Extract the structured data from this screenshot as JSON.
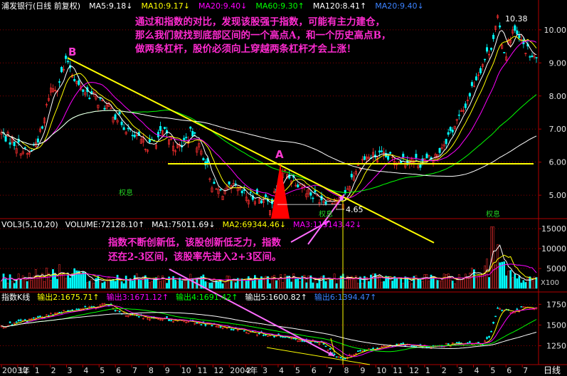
{
  "header_main": [
    {
      "text": "浦发银行(日线 前复权)",
      "color": "#ffffff"
    },
    {
      "text": "MA5:9.18↓",
      "color": "#ffffff"
    },
    {
      "text": "MA10:9.17↓",
      "color": "#ffff00"
    },
    {
      "text": "MA20:9.40↓",
      "color": "#ff00ff"
    },
    {
      "text": "MA60:9.30↑",
      "color": "#00ff00"
    },
    {
      "text": "MA120:8.41↑",
      "color": "#ffffff"
    },
    {
      "text": "MA20:9.40↓",
      "color": "#3b82ff"
    }
  ],
  "header_volume": [
    {
      "text": "VOL3(5,10,20)",
      "color": "#ffffff"
    },
    {
      "text": "VOLUME:72128.10↑",
      "color": "#ffffff"
    },
    {
      "text": "MA1:75011.69↓",
      "color": "#ffffff"
    },
    {
      "text": "MA2:69344.46↓",
      "color": "#ffff00"
    },
    {
      "text": "MA3:113143.42↓",
      "color": "#ff00ff"
    }
  ],
  "header_index": [
    {
      "text": "指数K线",
      "color": "#ffffff"
    },
    {
      "text": "输出2:1675.71↑",
      "color": "#ffff00"
    },
    {
      "text": "输出3:1671.12↑",
      "color": "#ff00ff"
    },
    {
      "text": "输出4:1691.42↑",
      "color": "#00ff00"
    },
    {
      "text": "输出5:1600.82↑",
      "color": "#ffffff"
    },
    {
      "text": "输出6:1394.47↑",
      "color": "#3b82ff"
    }
  ],
  "annotation_top": [
    "通过和指数的对比，发现该股强于指数，可能有主力建仓，",
    "那么我们就找到底部区间的一个高点A，和一个历史高点B，",
    "做两条杠杆，股价必须向上穿越两条杠杆才会上涨！"
  ],
  "annotation_mid": [
    "指数不断创新低，该股创新低乏力，指数",
    "还在2-3区间，该股率先进入2+3区间。"
  ],
  "markers": {
    "a": "A",
    "b": "B",
    "high": "10.38",
    "low": "4.65"
  },
  "badges": [
    "权息",
    "权息",
    "权息"
  ],
  "volume_scale_label": "X100",
  "x_axis_label": "日线",
  "x_axis_months": [
    "2003年",
    "12",
    "1",
    "2",
    "3",
    "4",
    "5",
    "6",
    "7",
    "8",
    "9",
    "10",
    "11",
    "12",
    "2004年",
    "2",
    "3",
    "4",
    "5",
    "6",
    "7",
    "8",
    "9",
    "10",
    "11",
    "12",
    "1",
    "2",
    "3",
    "4",
    "5",
    "6",
    "7"
  ],
  "colors": {
    "up": "#ff3030",
    "down": "#00ffff",
    "ma5": "#ffffff",
    "ma10": "#ffff00",
    "ma20": "#ff00ff",
    "ma60": "#00ff00",
    "ma120": "#ffffff",
    "grid": "#8b0000",
    "resistance": "#ffff00",
    "arrow": "#ff6cff",
    "red_marker": "#ff0000"
  },
  "chart_data": [
    {
      "type": "candlestick",
      "series_name": "浦发银行",
      "y_ticks": [
        "10.00",
        "9.00",
        "8.00",
        "7.00",
        "6.00",
        "5.00"
      ],
      "ylim": [
        4.4,
        10.6
      ],
      "x": [
        0,
        20,
        40,
        60,
        70,
        80,
        95,
        110,
        130,
        160,
        190,
        210,
        230,
        250,
        270,
        290,
        300,
        310,
        330,
        350,
        360,
        380,
        400,
        420,
        440,
        455,
        470,
        480,
        495,
        510,
        530,
        550,
        570,
        590,
        610,
        630,
        650,
        670,
        690,
        700,
        710,
        720,
        730,
        740,
        750
      ],
      "close": [
        6.9,
        6.6,
        6.2,
        7.0,
        8.2,
        8.3,
        9.1,
        8.3,
        8.0,
        7.5,
        6.7,
        6.5,
        6.9,
        6.4,
        6.9,
        6.0,
        5.2,
        5.1,
        5.2,
        4.9,
        5.0,
        4.7,
        5.7,
        5.4,
        5.0,
        4.9,
        4.9,
        4.7,
        5.6,
        6.1,
        6.2,
        6.1,
        6.1,
        6.0,
        6.1,
        6.8,
        7.5,
        8.6,
        9.5,
        10.3,
        9.2,
        10.0,
        9.7,
        9.4,
        9.1
      ],
      "resistance_b": {
        "from": [
          95,
          9.15
        ],
        "to": [
          390,
          5.95
        ]
      },
      "resistance_a": {
        "from": [
          236,
          5.95
        ],
        "to": [
          750,
          5.95
        ]
      },
      "high_point": {
        "x": 700,
        "y": 10.38
      },
      "low_point": {
        "x": 485,
        "y": 4.65
      }
    },
    {
      "type": "bar",
      "series_name": "VOLUME",
      "y_ticks": [
        "15000",
        "10000",
        "5000"
      ],
      "ylim": [
        0,
        17000
      ]
    },
    {
      "type": "line",
      "series_name": "指数K线",
      "y_ticks": [
        "1750",
        "1500",
        "1250"
      ],
      "ylim": [
        1040,
        1830
      ],
      "x": [
        0,
        50,
        100,
        130,
        150,
        170,
        200,
        250,
        300,
        350,
        400,
        450,
        480,
        500,
        530,
        560,
        600,
        640,
        680,
        690,
        700,
        720,
        740,
        755
      ],
      "close": [
        1480,
        1580,
        1680,
        1710,
        1760,
        1640,
        1600,
        1560,
        1500,
        1420,
        1350,
        1290,
        1090,
        1170,
        1230,
        1270,
        1240,
        1270,
        1280,
        1390,
        1710,
        1650,
        1730,
        1690
      ]
    }
  ]
}
